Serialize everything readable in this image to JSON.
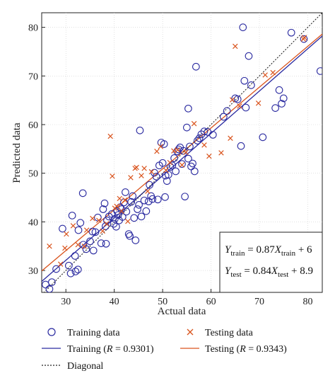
{
  "chart_data": {
    "type": "scatter",
    "xlabel": "Actual data",
    "ylabel": "Predicted data",
    "xlim": [
      25,
      83
    ],
    "ylim": [
      25.5,
      83
    ],
    "xticks": [
      30,
      40,
      50,
      60,
      70,
      80
    ],
    "yticks": [
      30,
      40,
      50,
      60,
      70,
      80
    ],
    "colors": {
      "training": "#2a2aa0",
      "testing": "#d9541e",
      "diagonal": "#222222"
    },
    "series": [
      {
        "name": "Training data",
        "marker": "circle",
        "points": [
          [
            25.8,
            27.1
          ],
          [
            26.6,
            26.2
          ],
          [
            27.1,
            27.6
          ],
          [
            28.0,
            30.3
          ],
          [
            29.3,
            38.6
          ],
          [
            30.6,
            31.0
          ],
          [
            31.0,
            29.4
          ],
          [
            31.3,
            41.3
          ],
          [
            31.9,
            33.0
          ],
          [
            32.0,
            29.8
          ],
          [
            32.5,
            30.2
          ],
          [
            32.6,
            38.3
          ],
          [
            33.0,
            39.8
          ],
          [
            33.5,
            45.9
          ],
          [
            33.6,
            35.3
          ],
          [
            34.2,
            34.4
          ],
          [
            35.0,
            36.0
          ],
          [
            35.5,
            38.0
          ],
          [
            35.7,
            34.1
          ],
          [
            36.1,
            37.9
          ],
          [
            36.6,
            40.9
          ],
          [
            37.3,
            35.6
          ],
          [
            37.7,
            42.6
          ],
          [
            38.0,
            43.8
          ],
          [
            38.2,
            39.1
          ],
          [
            38.3,
            35.5
          ],
          [
            38.5,
            40.3
          ],
          [
            38.9,
            41.1
          ],
          [
            39.5,
            41.6
          ],
          [
            39.9,
            39.6
          ],
          [
            40.1,
            40.6
          ],
          [
            40.4,
            39.0
          ],
          [
            40.6,
            42.2
          ],
          [
            40.8,
            41.4
          ],
          [
            41.0,
            40.3
          ],
          [
            41.2,
            43.0
          ],
          [
            41.5,
            42.6
          ],
          [
            41.7,
            41.0
          ],
          [
            42.0,
            44.0
          ],
          [
            42.3,
            46.1
          ],
          [
            42.5,
            42.1
          ],
          [
            43.0,
            37.5
          ],
          [
            43.2,
            37.1
          ],
          [
            43.5,
            44.1
          ],
          [
            43.8,
            45.3
          ],
          [
            44.1,
            40.8
          ],
          [
            44.4,
            36.2
          ],
          [
            44.8,
            42.6
          ],
          [
            45.1,
            43.5
          ],
          [
            45.3,
            58.8
          ],
          [
            45.6,
            41.1
          ],
          [
            46.2,
            44.4
          ],
          [
            46.6,
            42.2
          ],
          [
            47.1,
            44.2
          ],
          [
            47.3,
            47.6
          ],
          [
            47.6,
            45.3
          ],
          [
            47.9,
            44.7
          ],
          [
            48.3,
            50.1
          ],
          [
            48.7,
            49.3
          ],
          [
            49.0,
            44.6
          ],
          [
            49.3,
            51.6
          ],
          [
            49.7,
            56.3
          ],
          [
            50.0,
            52.1
          ],
          [
            50.3,
            56.0
          ],
          [
            50.6,
            49.5
          ],
          [
            50.9,
            48.4
          ],
          [
            51.2,
            49.7
          ],
          [
            51.6,
            51.3
          ],
          [
            52.0,
            51.6
          ],
          [
            52.4,
            53.1
          ],
          [
            52.7,
            50.4
          ],
          [
            53.0,
            54.5
          ],
          [
            53.3,
            54.9
          ],
          [
            53.6,
            55.3
          ],
          [
            54.0,
            51.9
          ],
          [
            54.3,
            54.6
          ],
          [
            54.6,
            45.2
          ],
          [
            55.0,
            59.4
          ],
          [
            55.3,
            53.0
          ],
          [
            55.6,
            55.5
          ],
          [
            55.9,
            51.4
          ],
          [
            56.2,
            52.0
          ],
          [
            56.6,
            50.4
          ],
          [
            56.9,
            71.9
          ],
          [
            57.2,
            56.7
          ],
          [
            57.6,
            57.2
          ],
          [
            58.0,
            58.0
          ],
          [
            58.6,
            58.6
          ],
          [
            59.3,
            58.5
          ],
          [
            60.4,
            57.9
          ],
          [
            55.3,
            63.3
          ],
          [
            62.6,
            61.6
          ],
          [
            63.3,
            62.8
          ],
          [
            65.0,
            65.4
          ],
          [
            65.5,
            65.2
          ],
          [
            66.2,
            55.6
          ],
          [
            66.6,
            80.0
          ],
          [
            66.9,
            69.0
          ],
          [
            67.2,
            63.5
          ],
          [
            67.8,
            74.1
          ],
          [
            68.3,
            68.1
          ],
          [
            70.7,
            57.4
          ],
          [
            73.3,
            63.4
          ],
          [
            74.1,
            67.1
          ],
          [
            74.6,
            64.3
          ],
          [
            75.0,
            65.4
          ],
          [
            76.6,
            78.9
          ],
          [
            79.2,
            77.6
          ],
          [
            82.6,
            71.0
          ],
          [
            50.5,
            45.1
          ]
        ]
      },
      {
        "name": "Testing data",
        "marker": "cross",
        "points": [
          [
            26.6,
            35.0
          ],
          [
            28.9,
            31.3
          ],
          [
            29.8,
            34.6
          ],
          [
            30.1,
            37.5
          ],
          [
            31.5,
            39.2
          ],
          [
            32.5,
            35.3
          ],
          [
            33.8,
            35.0
          ],
          [
            34.3,
            38.3
          ],
          [
            35.5,
            40.7
          ],
          [
            36.8,
            40.3
          ],
          [
            37.6,
            38.1
          ],
          [
            38.4,
            39.6
          ],
          [
            39.2,
            57.6
          ],
          [
            39.6,
            49.4
          ],
          [
            40.1,
            42.8
          ],
          [
            40.5,
            43.2
          ],
          [
            41.1,
            44.8
          ],
          [
            41.5,
            42.2
          ],
          [
            42.2,
            44.5
          ],
          [
            42.8,
            40.1
          ],
          [
            43.4,
            49.1
          ],
          [
            44.3,
            51.0
          ],
          [
            44.6,
            51.2
          ],
          [
            45.6,
            49.5
          ],
          [
            46.2,
            51.0
          ],
          [
            46.9,
            46.3
          ],
          [
            47.7,
            50.3
          ],
          [
            48.8,
            54.5
          ],
          [
            49.6,
            55.5
          ],
          [
            50.7,
            50.6
          ],
          [
            51.5,
            52.2
          ],
          [
            52.3,
            54.6
          ],
          [
            53.1,
            54.8
          ],
          [
            54.0,
            51.7
          ],
          [
            54.8,
            54.3
          ],
          [
            56.5,
            60.2
          ],
          [
            58.6,
            55.8
          ],
          [
            59.6,
            53.5
          ],
          [
            62.1,
            54.2
          ],
          [
            64.0,
            57.2
          ],
          [
            64.4,
            65.1
          ],
          [
            65.0,
            76.1
          ],
          [
            65.9,
            63.8
          ],
          [
            69.8,
            64.4
          ],
          [
            71.2,
            70.2
          ],
          [
            72.8,
            70.7
          ],
          [
            79.1,
            77.6
          ],
          [
            79.3,
            77.9
          ]
        ]
      }
    ],
    "fits": [
      {
        "name": "Training",
        "slope": 0.87,
        "intercept": 6
      },
      {
        "name": "Testing",
        "slope": 0.84,
        "intercept": 8.9
      },
      {
        "name": "Diagonal",
        "slope": 1,
        "intercept": 0
      }
    ],
    "annotations": {
      "train_eq": {
        "lhs": "Y",
        "lhs_sub": "train",
        "mid": " = 0.87",
        "var": "X",
        "var_sub": "train",
        "rhs": " + 6"
      },
      "test_eq": {
        "lhs": "Y",
        "lhs_sub": "test",
        "mid": " = 0.84",
        "var": "X",
        "var_sub": "test",
        "rhs": " + 8.9"
      }
    },
    "legend": {
      "training_data": "Training data",
      "testing_data": "Testing data",
      "training_fit": {
        "prefix": "Training (",
        "var": "R",
        "suffix": " = 0.9301)"
      },
      "testing_fit": {
        "prefix": "Testing (",
        "var": "R",
        "suffix": " = 0.9343)"
      },
      "diagonal": "Diagonal"
    }
  }
}
